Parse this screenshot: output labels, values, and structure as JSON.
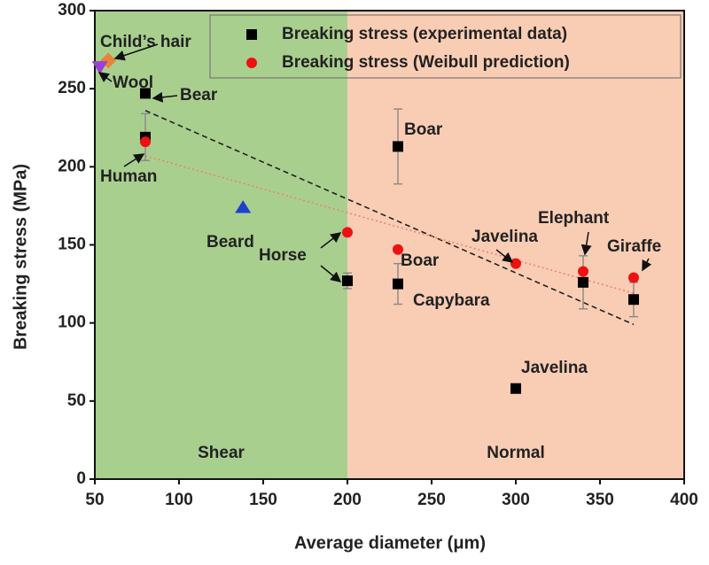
{
  "chart_data": {
    "type": "scatter",
    "x_label": "Average diameter (μm)",
    "y_label": "Breaking stress (MPa)",
    "xlim": [
      50,
      400
    ],
    "ylim": [
      0,
      300
    ],
    "xticks": [
      50,
      100,
      150,
      200,
      250,
      300,
      350,
      400
    ],
    "yticks": [
      0,
      50,
      100,
      150,
      200,
      250,
      300
    ],
    "regions": [
      {
        "label": "Shear",
        "from": 50,
        "to": 200,
        "color": "#a9cf8f"
      },
      {
        "label": "Normal",
        "from": 200,
        "to": 400,
        "color": "#f9cdb4"
      }
    ],
    "series": [
      {
        "name": "Breaking stress (experimental data)",
        "color": "#000000",
        "marker": "square",
        "x": [
          80,
          80,
          200,
          230,
          230,
          300,
          340,
          370
        ],
        "values": [
          247,
          219,
          127,
          213,
          125,
          58,
          126,
          115
        ],
        "errors": [
          null,
          15,
          5,
          24,
          13,
          null,
          17,
          11
        ]
      },
      {
        "name": "Breaking stress (Weibull prediction)",
        "color": "#ee1111",
        "marker": "circle",
        "x": [
          80,
          200,
          230,
          300,
          340,
          370
        ],
        "values": [
          216,
          158,
          147,
          138,
          133,
          129
        ]
      }
    ],
    "extra_points": [
      {
        "marker": "diamond",
        "color": "#e8833a",
        "x": 58,
        "value": 268
      },
      {
        "marker": "triangle-down",
        "color": "#9b3fd6",
        "x": 53,
        "value": 264
      },
      {
        "marker": "triangle-up",
        "color": "#1f3fd0",
        "x": 138,
        "value": 174
      }
    ],
    "trend_lines": [
      {
        "color": "#222222",
        "style": "dashed",
        "x": [
          80,
          370
        ],
        "values": [
          236,
          99
        ]
      },
      {
        "color": "#f08070",
        "style": "dotted",
        "x": [
          80,
          370
        ],
        "values": [
          207,
          119
        ]
      }
    ],
    "annotations": [
      "Child’s hair",
      "Wool",
      "Bear",
      "Human",
      "Boar",
      "Beard",
      "Horse",
      "Boar",
      "Capybara",
      "Javelina",
      "Elephant",
      "Giraffe",
      "Javelina"
    ]
  }
}
